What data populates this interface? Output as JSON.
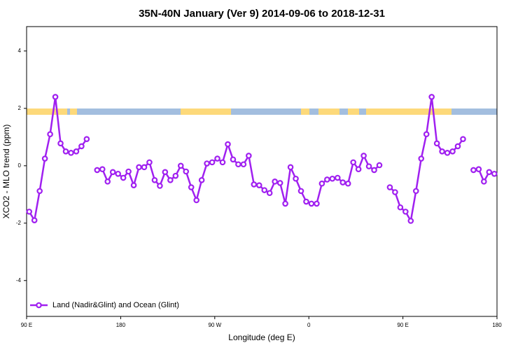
{
  "chart_data": {
    "type": "line",
    "title": "35N-40N January (Ver 9)   2014-09-06 to 2018-12-31",
    "x_label": "Longitude (deg E)",
    "y_label": "XCO2 - MLO trend (ppm)",
    "x": [
      92.5,
      97.5,
      102.5,
      107.5,
      112.5,
      117.5,
      122.5,
      127.5,
      132.5,
      137.5,
      142.5,
      147.5,
      152.5,
      157.5,
      162.5,
      167.5,
      172.5,
      177.5,
      182.5,
      187.5,
      192.5,
      197.5,
      202.5,
      207.5,
      212.5,
      217.5,
      222.5,
      227.5,
      232.5,
      237.5,
      242.5,
      247.5,
      252.5,
      257.5,
      262.5,
      267.5,
      272.5,
      277.5,
      282.5,
      287.5,
      292.5,
      297.5,
      302.5,
      307.5,
      312.5,
      317.5,
      322.5,
      327.5,
      332.5,
      337.5,
      342.5,
      347.5,
      352.5,
      357.5,
      362.5,
      367.5,
      372.5,
      377.5,
      382.5,
      387.5,
      392.5,
      397.5,
      402.5,
      407.5,
      412.5,
      417.5,
      422.5,
      427.5,
      432.5,
      437.5,
      442.5,
      447.5,
      452.5,
      457.5,
      462.5,
      467.5,
      472.5,
      477.5,
      482.5,
      487.5,
      492.5,
      497.5,
      502.5,
      507.5,
      512.5,
      517.5,
      522.5,
      527.5,
      532.5,
      537.5
    ],
    "series": [
      {
        "name": "Land (Nadir&Glint) and Ocean (Glint)",
        "color": "#a020f0",
        "values": [
          -1.6,
          -1.9,
          -0.88,
          0.25,
          1.1,
          2.4,
          0.78,
          0.5,
          0.45,
          0.5,
          0.68,
          0.93,
          null,
          -0.15,
          -0.12,
          -0.55,
          -0.22,
          -0.28,
          -0.42,
          -0.2,
          -0.68,
          -0.05,
          -0.05,
          0.12,
          -0.5,
          -0.7,
          -0.22,
          -0.5,
          -0.35,
          0.0,
          -0.2,
          -0.75,
          -1.2,
          -0.5,
          0.08,
          0.12,
          0.25,
          0.12,
          0.75,
          0.22,
          0.05,
          0.05,
          0.35,
          -0.65,
          -0.68,
          -0.85,
          -0.95,
          -0.55,
          -0.6,
          -1.32,
          -0.05,
          -0.45,
          -0.88,
          -1.25,
          -1.32,
          -1.32,
          -0.62,
          -0.48,
          -0.45,
          -0.42,
          -0.58,
          -0.62,
          0.12,
          -0.12,
          0.35,
          -0.02,
          -0.15,
          0.02,
          null,
          -0.75,
          -0.92,
          -1.45,
          -1.6,
          -1.92,
          -0.88,
          0.25,
          1.1,
          2.4,
          0.78,
          0.5,
          0.45,
          0.5,
          0.68,
          0.93,
          null,
          -0.15,
          -0.12,
          -0.55,
          -0.22,
          -0.28
        ]
      }
    ],
    "xlim": [
      90,
      540
    ],
    "xticks": [
      {
        "value": 90,
        "label": "90 E"
      },
      {
        "value": 180,
        "label": "180"
      },
      {
        "value": 270,
        "label": "90 W"
      },
      {
        "value": 360,
        "label": "0"
      },
      {
        "value": 450,
        "label": "90 E"
      },
      {
        "value": 540,
        "label": "180"
      }
    ],
    "ylim": [
      -5.25,
      4.85
    ],
    "yticks": [
      -4,
      -2,
      0,
      2,
      4
    ],
    "legend": "bottom-left"
  }
}
